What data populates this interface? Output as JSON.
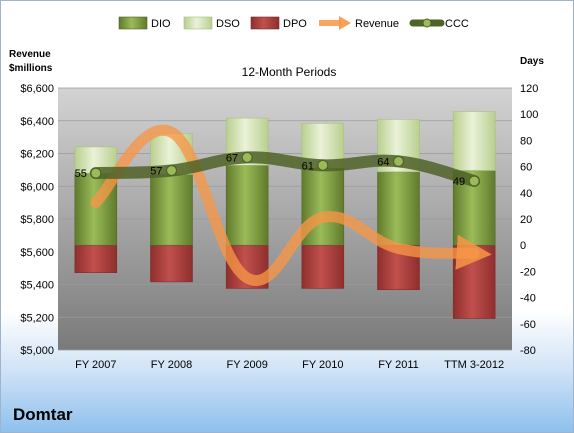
{
  "chart_data": {
    "type": "bar",
    "title": "12-Month Periods",
    "company": "Domtar",
    "categories": [
      "FY 2007",
      "FY 2008",
      "FY 2009",
      "FY 2010",
      "FY 2011",
      "TTM 3-2012"
    ],
    "left_axis": {
      "label_line1": "Revenue",
      "label_line2": "$millions",
      "ylim": [
        5000,
        6600
      ],
      "ticks": [
        5000,
        5200,
        5400,
        5600,
        5800,
        6000,
        6200,
        6400,
        6600
      ],
      "tick_labels": [
        "$5,000",
        "$5,200",
        "$5,400",
        "$5,600",
        "$5,800",
        "$6,000",
        "$6,200",
        "$6,400",
        "$6,600"
      ]
    },
    "right_axis": {
      "label": "Days",
      "ylim": [
        -80,
        120
      ],
      "ticks": [
        -80,
        -60,
        -40,
        -20,
        0,
        20,
        40,
        60,
        80,
        100,
        120
      ],
      "tick_labels": [
        "-80",
        "-60",
        "-40",
        "-20",
        "0",
        "20",
        "40",
        "60",
        "80",
        "100",
        "120"
      ]
    },
    "legend": [
      "DIO",
      "DSO",
      "DPO",
      "Revenue",
      "CCC"
    ],
    "legend_position": "top",
    "series": [
      {
        "name": "DIO",
        "axis": "days",
        "values": [
          55,
          54,
          61,
          59,
          56,
          57
        ],
        "color": "#77933c"
      },
      {
        "name": "DSO",
        "axis": "days",
        "values": [
          75,
          85,
          97,
          93,
          96,
          102
        ],
        "color": "#d7e4bd"
      },
      {
        "name": "DPO",
        "axis": "days",
        "values": [
          -21,
          -28,
          -33,
          -33,
          -34,
          -56
        ],
        "color": "#c0504d"
      },
      {
        "name": "Revenue",
        "axis": "revenue",
        "values": [
          5900,
          6330,
          5440,
          5810,
          5620,
          5590
        ],
        "color": "#f79646"
      },
      {
        "name": "CCC",
        "axis": "days",
        "values": [
          55,
          57,
          67,
          61,
          64,
          49
        ],
        "color": "#4f6228"
      }
    ],
    "ccc_labels": [
      "55",
      "57",
      "67",
      "61",
      "64",
      "49"
    ],
    "grid": true
  }
}
